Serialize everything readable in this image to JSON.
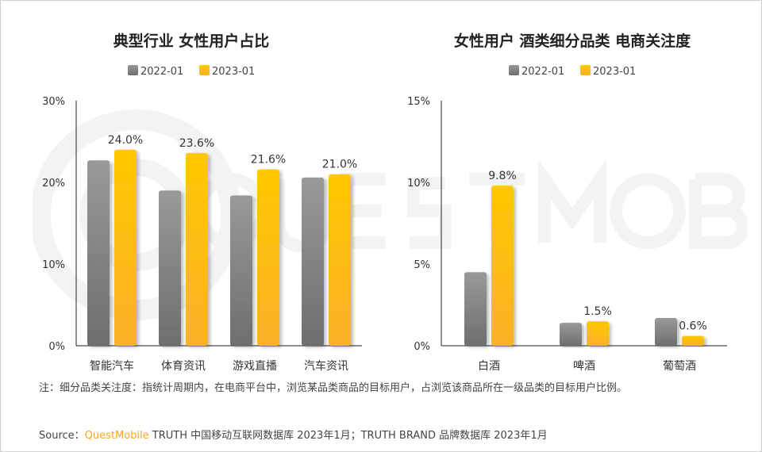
{
  "watermark": "QUEST MOBILE",
  "colors": {
    "gray": "#8c8c8c",
    "yellow": "#ffc300"
  },
  "chart_data": [
    {
      "type": "bar",
      "title": "典型行业 女性用户占比",
      "legend": [
        "2022-01",
        "2023-01"
      ],
      "categories": [
        "智能汽车",
        "体育资讯",
        "游戏直播",
        "汽车资讯"
      ],
      "series": [
        {
          "name": "2022-01",
          "values": [
            22.7,
            19.0,
            18.4,
            20.6
          ]
        },
        {
          "name": "2023-01",
          "values": [
            24.0,
            23.6,
            21.6,
            21.0
          ],
          "labels": [
            "24.0%",
            "23.6%",
            "21.6%",
            "21.0%"
          ]
        }
      ],
      "ylim": [
        0,
        30
      ],
      "yticks": [
        "0%",
        "10%",
        "20%",
        "30%"
      ],
      "ytick_values": [
        0,
        10,
        20,
        30
      ]
    },
    {
      "type": "bar",
      "title": "女性用户 酒类细分品类 电商关注度",
      "legend": [
        "2022-01",
        "2023-01"
      ],
      "categories": [
        "白酒",
        "啤酒",
        "葡萄酒"
      ],
      "series": [
        {
          "name": "2022-01",
          "values": [
            4.5,
            1.4,
            1.7
          ]
        },
        {
          "name": "2023-01",
          "values": [
            9.8,
            1.5,
            0.6
          ],
          "labels": [
            "9.8%",
            "1.5%",
            "0.6%"
          ]
        }
      ],
      "ylim": [
        0,
        15
      ],
      "yticks": [
        "0%",
        "5%",
        "10%",
        "15%"
      ],
      "ytick_values": [
        0,
        5,
        10,
        15
      ]
    }
  ],
  "note": "注：细分品类关注度：指统计周期内，在电商平台中，浏览某品类商品的目标用户，占浏览该商品所在一级品类的目标用户比例。",
  "source": {
    "label": "Source：",
    "brand": "QuestMobile",
    "text": " TRUTH 中国移动互联网数据库 2023年1月；TRUTH BRAND 品牌数据库 2023年1月"
  }
}
